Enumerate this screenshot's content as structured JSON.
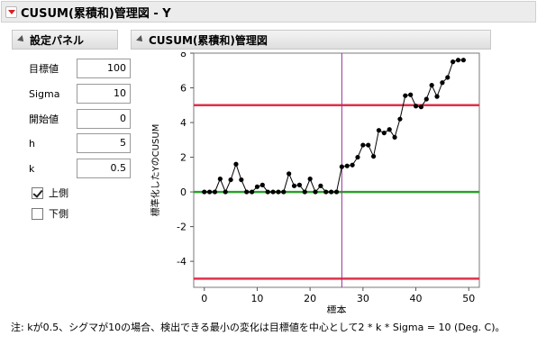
{
  "main_title": "CUSUM(累積和)管理図 - Y",
  "settings": {
    "title": "設定パネル",
    "fields": [
      {
        "label": "目標値",
        "value": "100"
      },
      {
        "label": "Sigma",
        "value": "10"
      },
      {
        "label": "開始値",
        "value": "0"
      },
      {
        "label": "h",
        "value": "5"
      },
      {
        "label": "k",
        "value": "0.5"
      }
    ],
    "upper": {
      "label": "上側",
      "checked": true
    },
    "lower": {
      "label": "下側",
      "checked": false
    }
  },
  "chart_title": "CUSUM(累積和)管理図",
  "chart_data": {
    "type": "line",
    "xlabel": "標本",
    "ylabel": "標準化したYのCUSUM",
    "xlim": [
      -2,
      52
    ],
    "ylim": [
      -5.5,
      8
    ],
    "xticks": [
      0,
      10,
      20,
      30,
      40,
      50
    ],
    "yticks": [
      -4,
      -2,
      0,
      2,
      4,
      6,
      8
    ],
    "grid": false,
    "ucl": 5,
    "lcl": -5,
    "center": 0,
    "vline": 26,
    "colors": {
      "limit": "#e0304a",
      "center": "#2ca02c",
      "vline": "#9b2d9b",
      "series": "#000000"
    },
    "x": [
      0,
      1,
      2,
      3,
      4,
      5,
      6,
      7,
      8,
      9,
      10,
      11,
      12,
      13,
      14,
      15,
      16,
      17,
      18,
      19,
      20,
      21,
      22,
      23,
      24,
      25,
      26,
      27,
      28,
      29,
      30,
      31,
      32,
      33,
      34,
      35,
      36,
      37,
      38,
      39,
      40,
      41,
      42,
      43,
      44,
      45,
      46,
      47,
      48,
      49
    ],
    "y": [
      0,
      0,
      0,
      0.75,
      0,
      0.7,
      1.6,
      0.7,
      0,
      0,
      0.3,
      0.4,
      0,
      0,
      0,
      0,
      1.05,
      0.35,
      0.4,
      0,
      0.75,
      0,
      0.35,
      0,
      0,
      0,
      1.45,
      1.5,
      1.55,
      2.0,
      2.7,
      2.7,
      2.05,
      3.55,
      3.4,
      3.6,
      3.15,
      4.2,
      5.55,
      5.6,
      4.95,
      4.9,
      5.35,
      6.15,
      5.5,
      6.3,
      6.6,
      7.5,
      7.6,
      7.6
    ]
  },
  "note": "注: kが0.5、シグマが10の場合、検出できる最小の変化は目標値を中心として2 * k * Sigma = 10 (Deg. C)。"
}
